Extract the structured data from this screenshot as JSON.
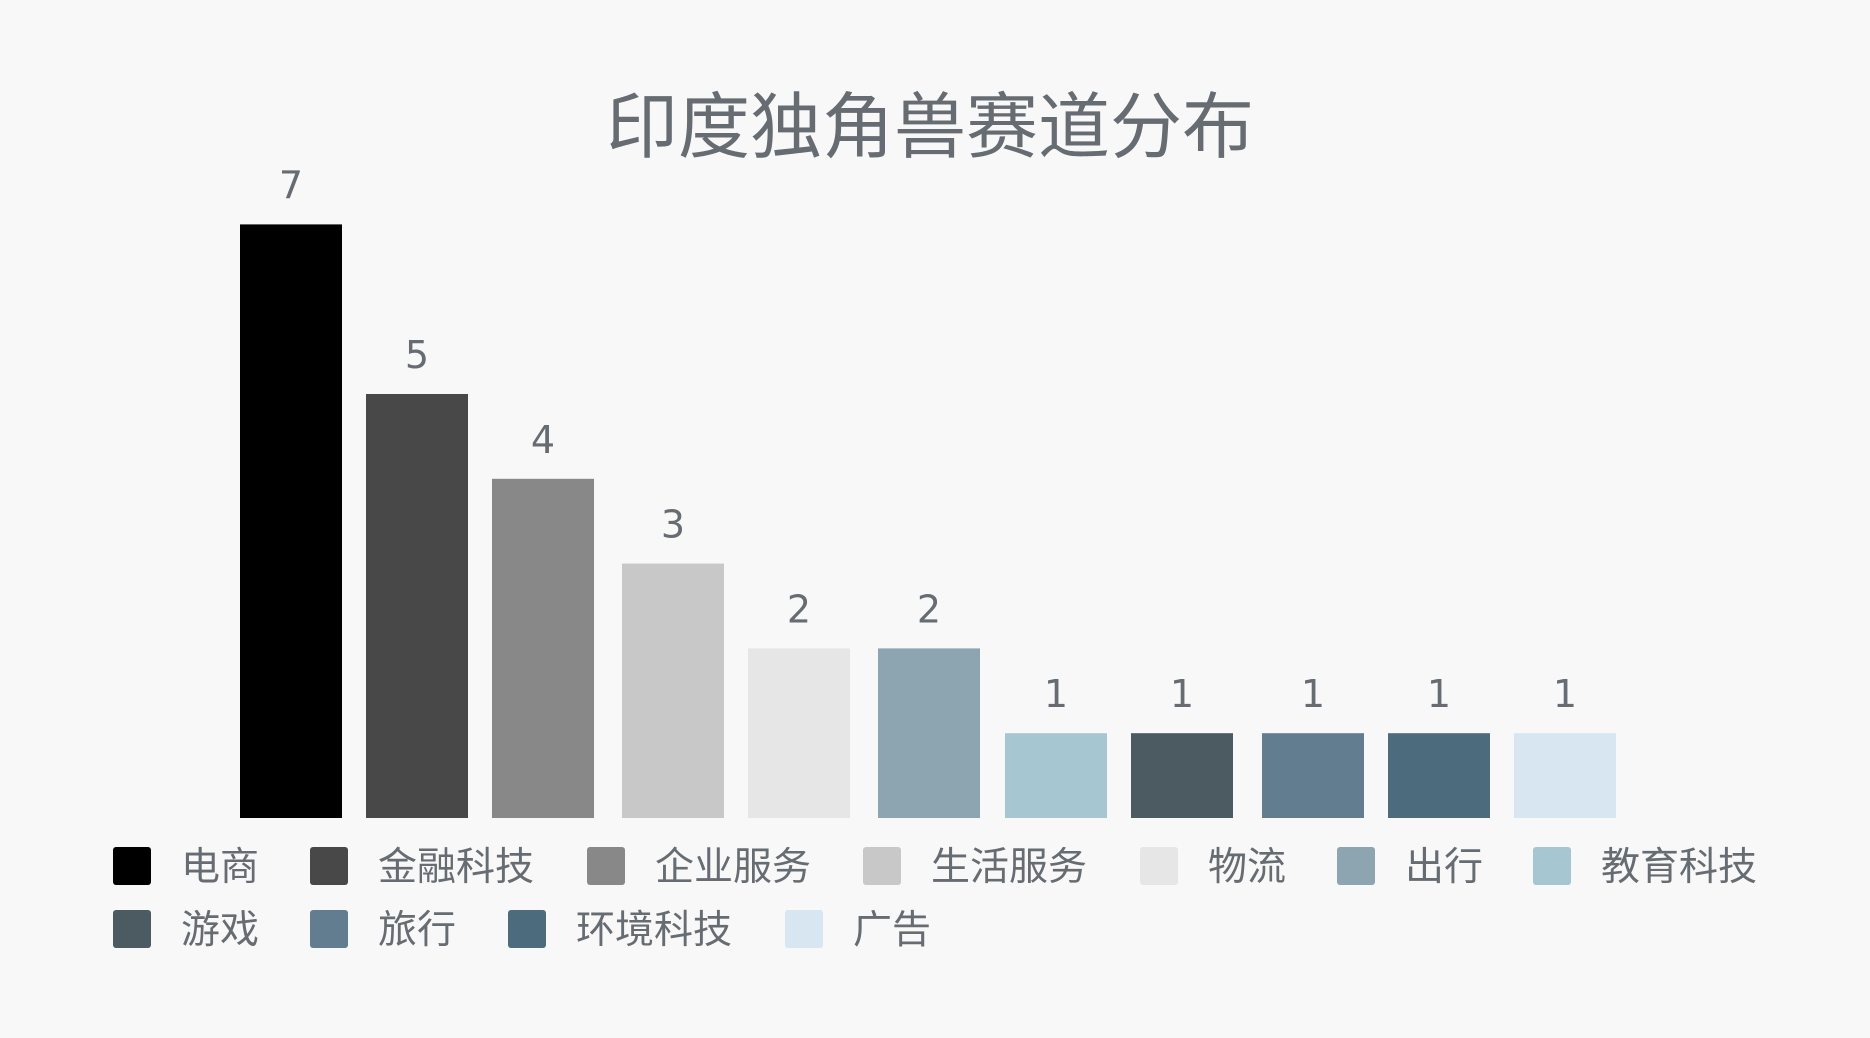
{
  "chart_data": {
    "type": "bar",
    "title": "印度独角兽赛道分布",
    "categories": [
      "电商",
      "金融科技",
      "企业服务",
      "生活服务",
      "物流",
      "出行",
      "教育科技",
      "游戏",
      "旅行",
      "环境科技",
      "广告"
    ],
    "values": [
      7,
      5,
      4,
      3,
      2,
      2,
      1,
      1,
      1,
      1,
      1
    ],
    "colors": [
      "#000000",
      "#484848",
      "#888888",
      "#c8c8c8",
      "#e6e6e6",
      "#8da5b0",
      "#a6c6d2",
      "#4c5a61",
      "#627c90",
      "#4c6c7e",
      "#d8e6f2"
    ],
    "ylim": [
      0,
      7
    ],
    "xlabel": "",
    "ylabel": "",
    "grid": false,
    "legend": "bottom",
    "data_labels": true
  }
}
